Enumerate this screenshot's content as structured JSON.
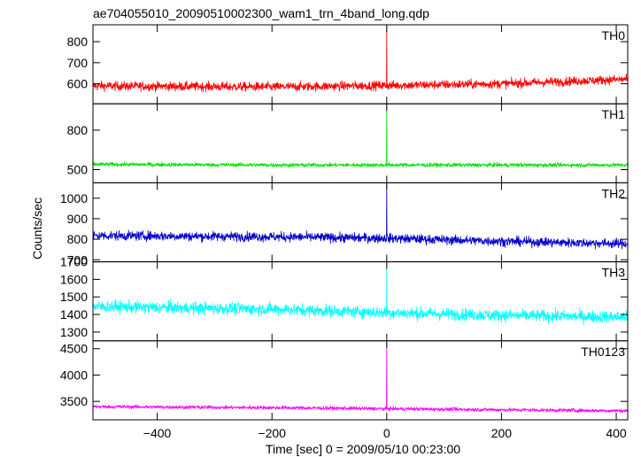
{
  "chart_data": {
    "type": "line",
    "title": "ae704055010_20090510002300_wam1_trn_4band_long.qdp",
    "xlabel": "Time [sec] 0 = 2009/05/10 00:23:00",
    "ylabel": "Counts/sec",
    "xlim": [
      -512,
      420
    ],
    "x_ticks": [
      -400,
      -200,
      0,
      200,
      400
    ],
    "x_tick_labels": [
      "−400",
      "−200",
      "0",
      "200",
      "400"
    ],
    "spike_x": 0,
    "panels": [
      {
        "name": "TH0",
        "color": "#ff0000",
        "ylim": [
          505,
          880
        ],
        "y_ticks": [
          600,
          700,
          800
        ],
        "baseline": [
          [
            -512,
            590
          ],
          [
            -200,
            585
          ],
          [
            0,
            592
          ],
          [
            200,
            600
          ],
          [
            420,
            622
          ]
        ],
        "noise_amplitude": 28,
        "spike_peak": 880
      },
      {
        "name": "TH1",
        "color": "#00e000",
        "ylim": [
          400,
          1000
        ],
        "y_ticks": [
          500,
          800
        ],
        "y_tick_labels": [
          "500",
          "800"
        ],
        "baseline": [
          [
            -512,
            540
          ],
          [
            -200,
            535
          ],
          [
            0,
            535
          ],
          [
            200,
            535
          ],
          [
            420,
            535
          ]
        ],
        "noise_amplitude": 20,
        "spike_peak": 1000
      },
      {
        "name": "TH2",
        "color": "#0000cc",
        "ylim": [
          690,
          1075
        ],
        "y_ticks": [
          700,
          800,
          900,
          1000
        ],
        "baseline": [
          [
            -512,
            818
          ],
          [
            -200,
            812
          ],
          [
            0,
            805
          ],
          [
            200,
            790
          ],
          [
            420,
            778
          ]
        ],
        "noise_amplitude": 30,
        "spike_peak": 1075
      },
      {
        "name": "TH3",
        "color": "#00ffff",
        "ylim": [
          1250,
          1700
        ],
        "y_ticks": [
          1300,
          1400,
          1500,
          1600,
          1700
        ],
        "baseline": [
          [
            -512,
            1445
          ],
          [
            -200,
            1430
          ],
          [
            0,
            1410
          ],
          [
            200,
            1395
          ],
          [
            420,
            1385
          ]
        ],
        "noise_amplitude": 45,
        "spike_peak": 1700
      },
      {
        "name": "TH0123",
        "color": "#ff00ff",
        "ylim": [
          3150,
          4650
        ],
        "y_ticks": [
          3500,
          4000,
          4500
        ],
        "baseline": [
          [
            -512,
            3400
          ],
          [
            -200,
            3380
          ],
          [
            0,
            3360
          ],
          [
            200,
            3340
          ],
          [
            420,
            3320
          ]
        ],
        "noise_amplitude": 45,
        "spike_peak": 4650
      }
    ]
  }
}
